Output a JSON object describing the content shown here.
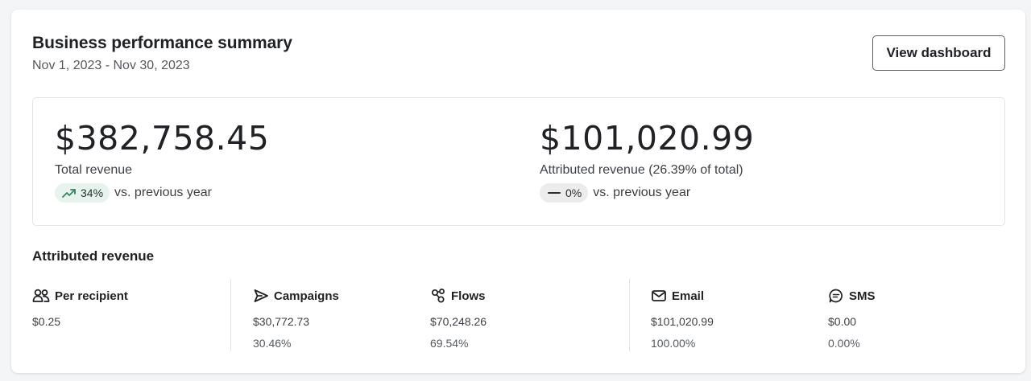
{
  "header": {
    "title": "Business performance summary",
    "date_range": "Nov 1, 2023 - Nov 30, 2023",
    "view_dashboard_label": "View dashboard"
  },
  "kpis": [
    {
      "value": "$382,758.45",
      "label": "Total revenue",
      "change": "34%",
      "trend": "up",
      "trend_icon": "trending-up-icon",
      "comparison": "vs. previous year"
    },
    {
      "value": "$101,020.99",
      "label": "Attributed revenue (26.39% of total)",
      "change": "0%",
      "trend": "flat",
      "trend_icon": "dash-icon",
      "comparison": "vs. previous year"
    }
  ],
  "attributed": {
    "title": "Attributed revenue",
    "metrics": [
      {
        "icon": "people-icon",
        "label": "Per recipient",
        "value": "$0.25",
        "percent": ""
      },
      {
        "icon": "send-icon",
        "label": "Campaigns",
        "value": "$30,772.73",
        "percent": "30.46%"
      },
      {
        "icon": "flows-icon",
        "label": "Flows",
        "value": "$70,248.26",
        "percent": "69.54%"
      },
      {
        "icon": "mail-icon",
        "label": "Email",
        "value": "$101,020.99",
        "percent": "100.00%"
      },
      {
        "icon": "sms-icon",
        "label": "SMS",
        "value": "$0.00",
        "percent": "0.00%"
      }
    ]
  },
  "colors": {
    "trend_up_bg": "#e7f4ee",
    "trend_up_icon": "#2e8a5c",
    "trend_flat_bg": "#ececed",
    "text_primary": "#1f2124"
  }
}
